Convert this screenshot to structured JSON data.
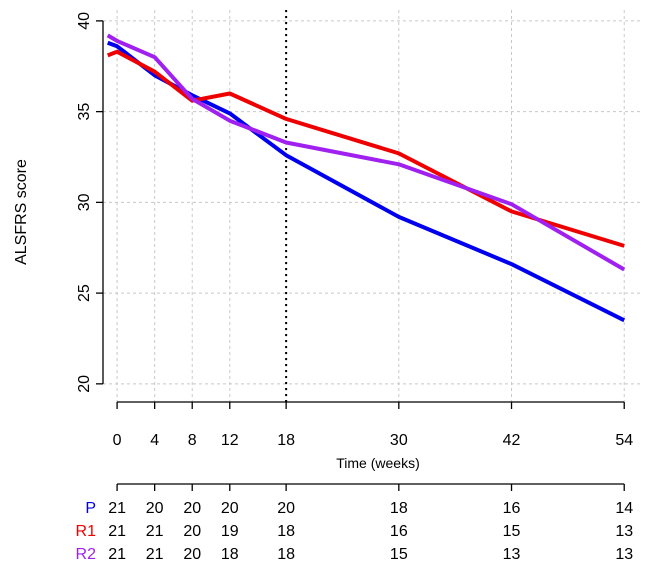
{
  "chart_data": {
    "type": "line",
    "xlabel": "Time (weeks)",
    "ylabel": "ALSFRS score",
    "xlim": [
      -1.5,
      56
    ],
    "ylim": [
      19,
      40.6
    ],
    "x_ticks": [
      0,
      4,
      8,
      12,
      18,
      30,
      42,
      54
    ],
    "y_ticks": [
      20,
      25,
      30,
      35,
      40
    ],
    "grid": true,
    "vline": 18,
    "series": [
      {
        "name": "P",
        "color": "#0000ee",
        "x": [
          -1,
          0,
          4,
          8,
          12,
          18,
          30,
          42,
          54
        ],
        "y": [
          38.8,
          38.6,
          37.0,
          35.9,
          34.9,
          32.6,
          29.2,
          26.6,
          23.5
        ]
      },
      {
        "name": "R1",
        "color": "#ee0000",
        "x": [
          -1,
          0,
          4,
          8,
          12,
          18,
          30,
          42,
          54
        ],
        "y": [
          38.1,
          38.3,
          37.2,
          35.6,
          36.0,
          34.6,
          32.7,
          29.5,
          27.6
        ]
      },
      {
        "name": "R2",
        "color": "#a020f0",
        "x": [
          -1,
          0,
          4,
          8,
          12,
          18,
          30,
          42,
          54
        ],
        "y": [
          39.2,
          38.9,
          38.0,
          35.7,
          34.5,
          33.3,
          32.1,
          29.9,
          26.3
        ]
      }
    ],
    "risk_table": {
      "x": [
        0,
        4,
        8,
        12,
        18,
        30,
        42,
        54
      ],
      "rows": [
        {
          "label": "P",
          "color": "#0000ee",
          "values": [
            "21",
            "20",
            "20",
            "20",
            "20",
            "18",
            "16",
            "14"
          ]
        },
        {
          "label": "R1",
          "color": "#ee0000",
          "values": [
            "21",
            "21",
            "20",
            "19",
            "18",
            "16",
            "15",
            "13"
          ]
        },
        {
          "label": "R2",
          "color": "#a020f0",
          "values": [
            "21",
            "21",
            "20",
            "18",
            "18",
            "15",
            "13",
            "13"
          ]
        }
      ]
    }
  }
}
